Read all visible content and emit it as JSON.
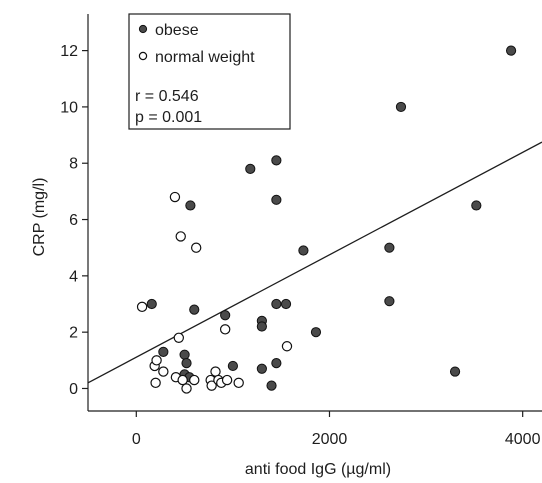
{
  "chart_data": {
    "type": "scatter",
    "title": "",
    "xlabel": "anti food IgG (µg/ml)",
    "ylabel": "CRP (mg/l)",
    "xlim": [
      -500,
      4200
    ],
    "ylim": [
      -0.8,
      13.3
    ],
    "x_ticks": [
      0,
      2000,
      4000
    ],
    "x_tick_labels": [
      "0",
      "2000",
      "4000"
    ],
    "y_ticks": [
      0,
      2,
      4,
      6,
      8,
      10,
      12
    ],
    "y_tick_labels": [
      "0",
      "2",
      "4",
      "6",
      "8",
      "10",
      "12"
    ],
    "grid": false,
    "legend_position": "top-left",
    "stats": {
      "r_text": "r = 0.546",
      "p_text": "p = 0.001"
    },
    "regression_line": {
      "x": [
        -500,
        4200
      ],
      "y": [
        0.2,
        8.75
      ]
    },
    "series": [
      {
        "name": "obese",
        "marker": "filled-circle",
        "points": [
          [
            160,
            3.0
          ],
          [
            280,
            1.3
          ],
          [
            500,
            1.2
          ],
          [
            560,
            6.5
          ],
          [
            600,
            2.8
          ],
          [
            520,
            0.9
          ],
          [
            500,
            0.5
          ],
          [
            550,
            0.4
          ],
          [
            920,
            2.6
          ],
          [
            1000,
            0.8
          ],
          [
            1180,
            7.8
          ],
          [
            1300,
            2.4
          ],
          [
            1300,
            2.2
          ],
          [
            1300,
            0.7
          ],
          [
            1450,
            8.1
          ],
          [
            1450,
            6.7
          ],
          [
            1450,
            3.0
          ],
          [
            1450,
            0.9
          ],
          [
            1400,
            0.1
          ],
          [
            1550,
            3.0
          ],
          [
            1730,
            4.9
          ],
          [
            1860,
            2.0
          ],
          [
            2620,
            5.0
          ],
          [
            2620,
            3.1
          ],
          [
            2740,
            10.0
          ],
          [
            3300,
            0.6
          ],
          [
            3520,
            6.5
          ],
          [
            3880,
            12.0
          ]
        ]
      },
      {
        "name": "normal weight",
        "marker": "open-circle",
        "points": [
          [
            60,
            2.9
          ],
          [
            190,
            0.8
          ],
          [
            210,
            1.0
          ],
          [
            200,
            0.2
          ],
          [
            280,
            0.6
          ],
          [
            400,
            6.8
          ],
          [
            410,
            0.4
          ],
          [
            440,
            1.8
          ],
          [
            460,
            5.4
          ],
          [
            480,
            0.3
          ],
          [
            520,
            0.0
          ],
          [
            600,
            0.3
          ],
          [
            620,
            5.0
          ],
          [
            770,
            0.3
          ],
          [
            780,
            0.1
          ],
          [
            820,
            0.6
          ],
          [
            850,
            0.3
          ],
          [
            880,
            0.2
          ],
          [
            920,
            2.1
          ],
          [
            940,
            0.3
          ],
          [
            1060,
            0.2
          ],
          [
            1560,
            1.5
          ]
        ]
      }
    ]
  }
}
